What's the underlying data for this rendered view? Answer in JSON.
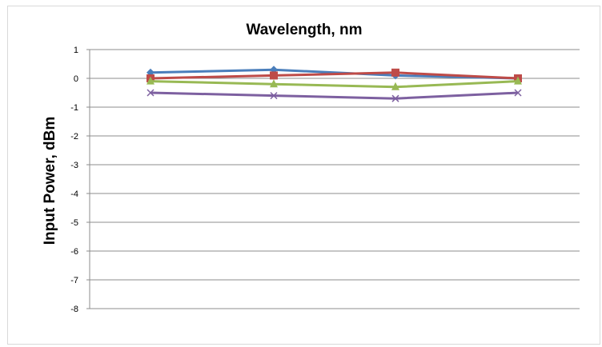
{
  "chart_data": {
    "type": "line",
    "title": "Wavelength, nm",
    "xlabel": "",
    "ylabel": "Input Power, dBm",
    "ylim": [
      -8,
      1
    ],
    "yticks": [
      1,
      0,
      -1,
      -2,
      -3,
      -4,
      -5,
      -6,
      -7,
      -8
    ],
    "categories": [
      "",
      "",
      "",
      ""
    ],
    "grid": true,
    "legend": "none",
    "series": [
      {
        "color": "#4a7ebb",
        "marker": "diamond",
        "values": [
          0.2,
          0.3,
          0.1,
          0.0
        ]
      },
      {
        "color": "#be4b48",
        "marker": "square",
        "values": [
          0.0,
          0.1,
          0.2,
          0.0
        ]
      },
      {
        "color": "#98b954",
        "marker": "triangle",
        "values": [
          -0.1,
          -0.2,
          -0.3,
          -0.1
        ]
      },
      {
        "color": "#7d60a0",
        "marker": "x",
        "values": [
          -0.5,
          -0.6,
          -0.7,
          -0.5
        ]
      }
    ]
  }
}
